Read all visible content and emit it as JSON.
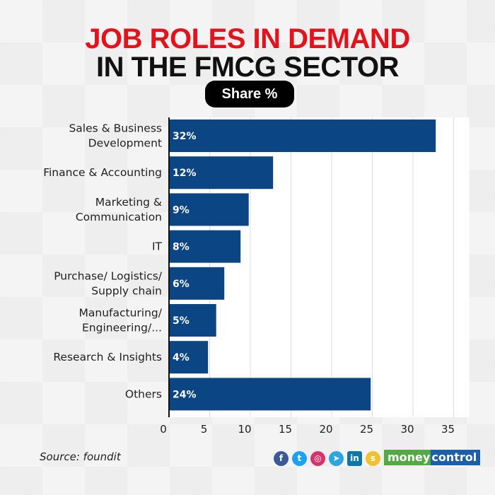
{
  "header": {
    "title_line1": "JOB ROLES IN DEMAND",
    "title_line2": "IN THE FMCG SECTOR",
    "pill": "Share %"
  },
  "chart_data": {
    "type": "bar",
    "orientation": "horizontal",
    "title": "Job roles in demand in the FMCG sector",
    "subtitle": "Share %",
    "categories": [
      [
        "Sales & Business",
        "Development"
      ],
      [
        "Finance & Accounting"
      ],
      [
        "Marketing &",
        "Communication"
      ],
      [
        "IT"
      ],
      [
        "Purchase/ Logistics/",
        "Supply chain"
      ],
      [
        "Manufacturing/",
        "Engineering/..."
      ],
      [
        "Research & Insights"
      ],
      [
        "Others"
      ]
    ],
    "values": [
      32,
      12,
      9,
      8,
      6,
      5,
      4,
      24
    ],
    "data_labels": [
      "32%",
      "12%",
      "9%",
      "8%",
      "6%",
      "5%",
      "4%",
      "24%"
    ],
    "xlim": [
      0,
      35
    ],
    "xticks": [
      0,
      5,
      10,
      15,
      20,
      25,
      30,
      35
    ],
    "grid": true,
    "bar_color": "#0b4584"
  },
  "footer": {
    "source": "Source: foundit",
    "social_icons": [
      "facebook-icon",
      "twitter-icon",
      "instagram-icon",
      "telegram-icon",
      "linkedin-icon",
      "sharechat-icon"
    ],
    "brand_part1": "money",
    "brand_part2": "control"
  }
}
